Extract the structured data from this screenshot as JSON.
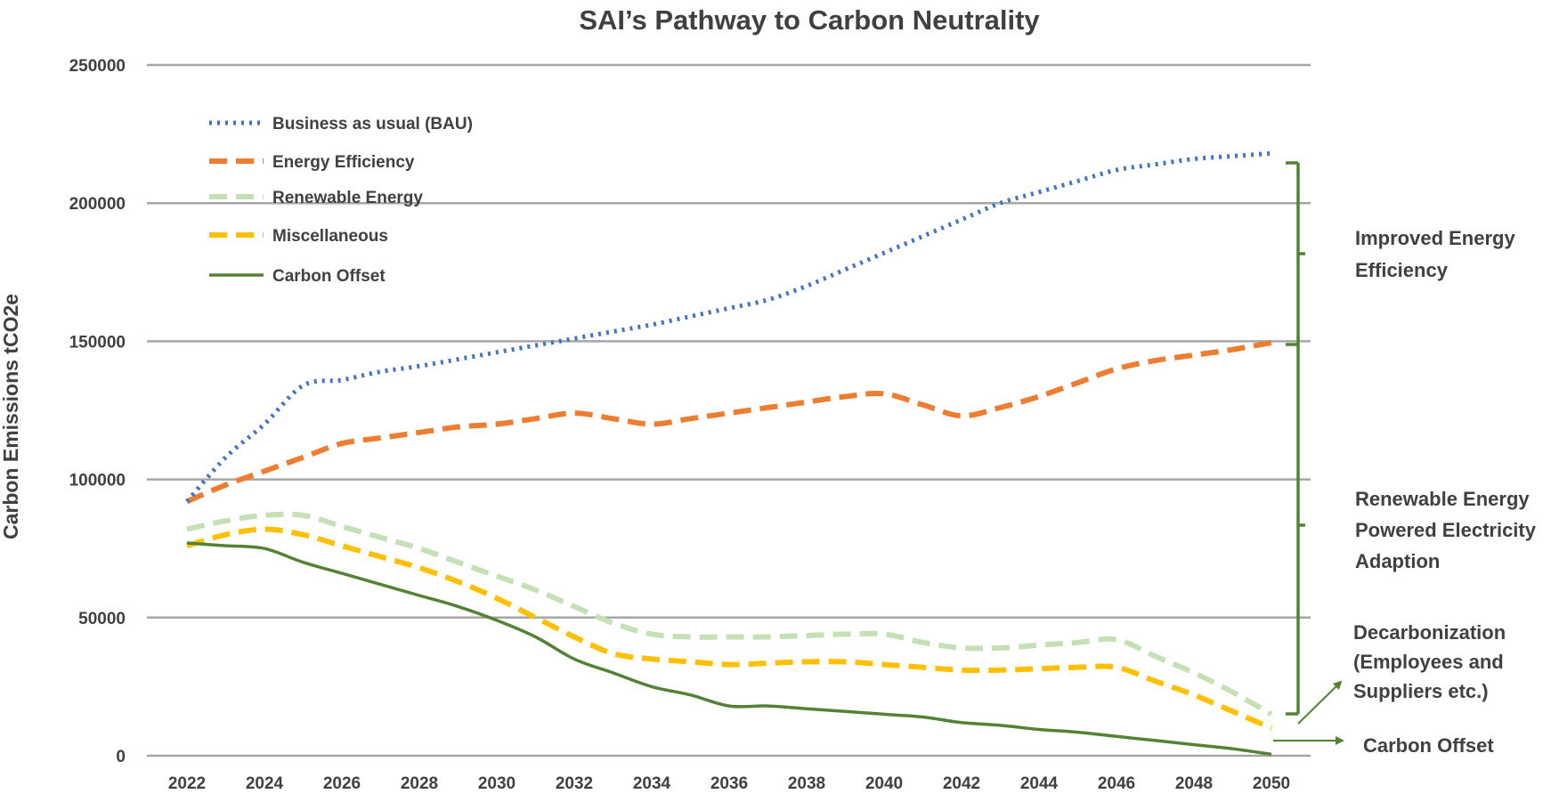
{
  "chart_data": {
    "type": "line",
    "title": "SAI’s Pathway to Carbon Neutrality",
    "xlabel": "",
    "ylabel": "Carbon Emissions tCO2e",
    "ylim": [
      0,
      250000
    ],
    "yticks": [
      "250000",
      "200000",
      "150000",
      "100000",
      "50000",
      "0"
    ],
    "xticks": [
      "2022",
      "2024",
      "2026",
      "2028",
      "2030",
      "2032",
      "2034",
      "2036",
      "2038",
      "2040",
      "2042",
      "2044",
      "2046",
      "2048",
      "2050"
    ],
    "grid": true,
    "legend_position": "top-left",
    "x": [
      2022,
      2023,
      2024,
      2025,
      2026,
      2027,
      2028,
      2029,
      2030,
      2031,
      2032,
      2033,
      2034,
      2035,
      2036,
      2037,
      2038,
      2039,
      2040,
      2041,
      2042,
      2043,
      2044,
      2045,
      2046,
      2047,
      2048,
      2049,
      2050
    ],
    "series": [
      {
        "name": "Business as usual (BAU)",
        "color": "#4472C4",
        "style": "dotted",
        "values": [
          92000,
          108000,
          120000,
          134000,
          136000,
          139000,
          141000,
          143500,
          146000,
          148500,
          151000,
          153500,
          156000,
          159000,
          162000,
          165000,
          170000,
          176000,
          182000,
          188000,
          194000,
          200000,
          204000,
          208000,
          212000,
          214000,
          216000,
          217000,
          218000
        ]
      },
      {
        "name": "Energy Efficiency",
        "color": "#ED7D31",
        "style": "dashed",
        "values": [
          92000,
          98000,
          103000,
          108000,
          113000,
          115000,
          117000,
          119000,
          120000,
          122000,
          124000,
          122000,
          120000,
          122000,
          124000,
          126000,
          128000,
          130000,
          131000,
          127000,
          123000,
          126000,
          130000,
          135000,
          140000,
          143000,
          145000,
          147000,
          149500
        ]
      },
      {
        "name": "Renewable Energy",
        "color": "#C5E0B4",
        "style": "dashed",
        "values": [
          82000,
          85000,
          87000,
          87000,
          83000,
          79000,
          75000,
          70000,
          65000,
          60000,
          54000,
          48000,
          44000,
          43000,
          43000,
          43000,
          43500,
          44000,
          44000,
          41000,
          39000,
          39000,
          40000,
          41000,
          42000,
          36000,
          30000,
          23000,
          15000
        ]
      },
      {
        "name": "Miscellaneous",
        "color": "#FFC000",
        "style": "dashed",
        "values": [
          76000,
          80000,
          82000,
          80000,
          76000,
          72000,
          68000,
          63000,
          57000,
          50000,
          43000,
          37000,
          35000,
          34000,
          33000,
          33500,
          34000,
          34000,
          33000,
          32000,
          31000,
          31000,
          31500,
          32000,
          32000,
          27000,
          22000,
          16000,
          10000
        ]
      },
      {
        "name": "Carbon Offset",
        "color": "#548235",
        "style": "solid",
        "values": [
          77000,
          76000,
          75000,
          70000,
          66000,
          62000,
          58000,
          54000,
          49000,
          43000,
          35000,
          30000,
          25000,
          22000,
          18000,
          18000,
          17000,
          16000,
          15000,
          14000,
          12000,
          11000,
          9500,
          8500,
          7000,
          5500,
          4000,
          2500,
          500
        ]
      }
    ],
    "annotations": [
      {
        "lines": [
          "Improved Energy",
          "Efficiency"
        ]
      },
      {
        "lines": [
          "Renewable Energy",
          "Powered Electricity",
          "Adaption"
        ]
      },
      {
        "lines": [
          "Decarbonization",
          "(Employees and",
          "Suppliers etc.)"
        ]
      },
      {
        "lines": [
          "Carbon Offset"
        ]
      }
    ],
    "bracket_color": "#548235"
  }
}
